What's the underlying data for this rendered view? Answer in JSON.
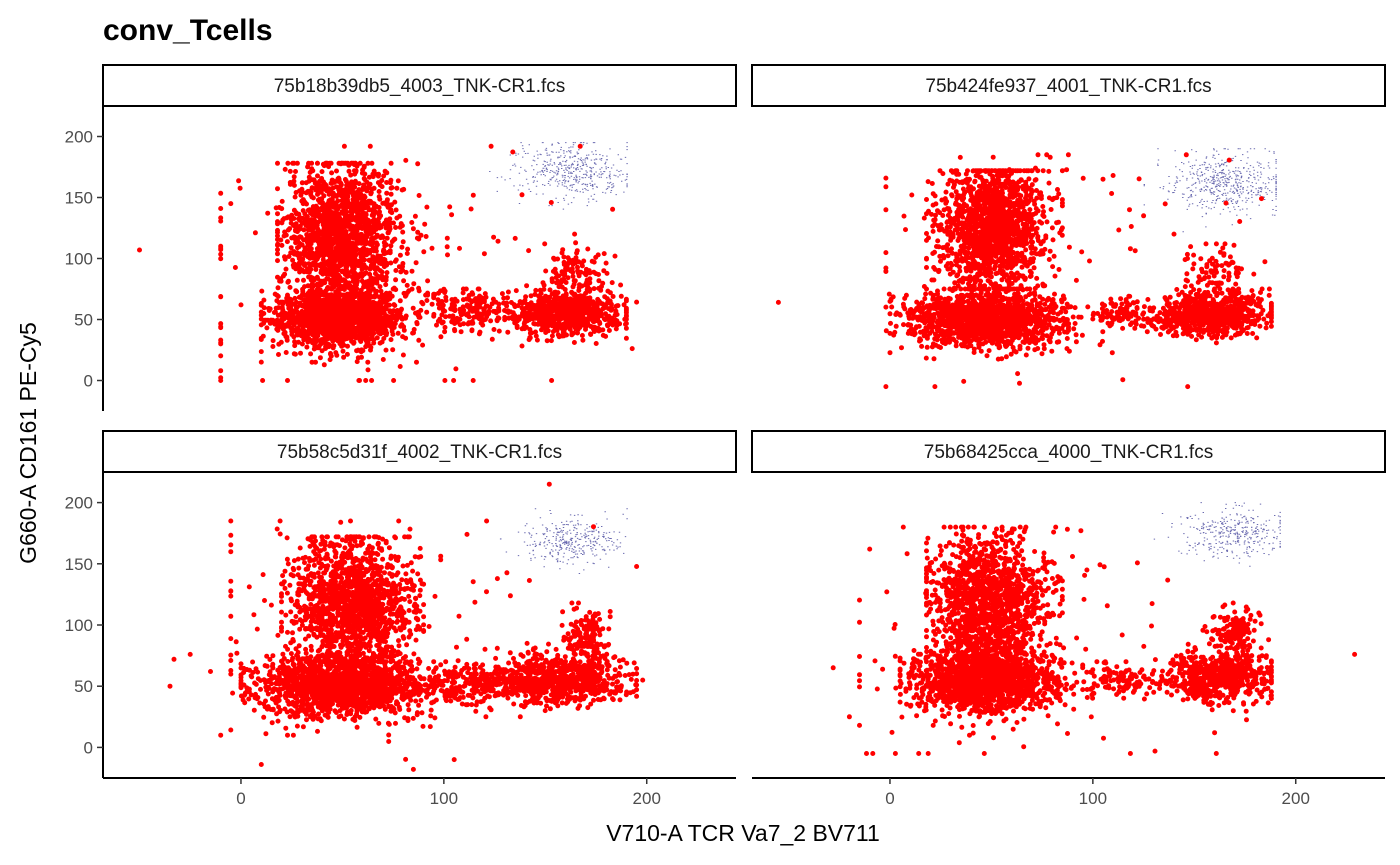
{
  "chart_data": {
    "type": "scatter",
    "title": "conv_Tcells",
    "xlabel": "V710-A TCR Va7_2 BV711",
    "ylabel": "G660-A CD161 PE-Cy5",
    "xlim": [
      -68,
      244
    ],
    "ylim": [
      -25,
      225
    ],
    "x_ticks": [
      0,
      100,
      200
    ],
    "y_ticks": [
      0,
      50,
      100,
      150,
      200
    ],
    "grid": false,
    "legend": "none",
    "colors": {
      "main_events": "#ff0000",
      "gated_events": "#6b6bb0"
    },
    "panels": [
      {
        "strip": "75b18b39db5_4003_TNK-CR1.fcs",
        "clusters": [
          {
            "kind": "main",
            "cx": 50,
            "cy": 120,
            "sx": 14,
            "sy": 28,
            "n": 1500,
            "xmin": 18,
            "xmax": 92,
            "ymin": 70,
            "ymax": 178
          },
          {
            "kind": "main",
            "cx": 48,
            "cy": 52,
            "sx": 16,
            "sy": 12,
            "n": 1500,
            "xmin": 10,
            "xmax": 105,
            "ymin": 15,
            "ymax": 90
          },
          {
            "kind": "main",
            "cx": 160,
            "cy": 55,
            "sx": 14,
            "sy": 9,
            "n": 700,
            "xmin": 120,
            "xmax": 190,
            "ymin": 30,
            "ymax": 80
          },
          {
            "kind": "main",
            "cx": 165,
            "cy": 90,
            "sx": 8,
            "sy": 12,
            "n": 120,
            "xmin": 140,
            "xmax": 185,
            "ymin": 65,
            "ymax": 120
          },
          {
            "kind": "main",
            "cx": 110,
            "cy": 58,
            "sx": 9,
            "sy": 8,
            "n": 150,
            "xmin": 95,
            "xmax": 130,
            "ymin": 40,
            "ymax": 75
          },
          {
            "kind": "main",
            "cx": 60,
            "cy": 90,
            "sx": 55,
            "sy": 60,
            "n": 140,
            "xmin": -10,
            "xmax": 195,
            "ymin": 0,
            "ymax": 192
          },
          {
            "kind": "gated",
            "cx": 163,
            "cy": 172,
            "sx": 14,
            "sy": 12,
            "n": 450,
            "xmin": 120,
            "xmax": 190,
            "ymin": 130,
            "ymax": 195
          }
        ],
        "singles": [
          [
            -50,
            107
          ],
          [
            -10,
            110
          ],
          [
            -10,
            30
          ],
          [
            -10,
            8
          ],
          [
            -5,
            145
          ],
          [
            0,
            62
          ]
        ]
      },
      {
        "strip": "75b424fe937_4001_TNK-CR1.fcs",
        "clusters": [
          {
            "kind": "main",
            "cx": 50,
            "cy": 125,
            "sx": 13,
            "sy": 25,
            "n": 1400,
            "xmin": 18,
            "xmax": 85,
            "ymin": 75,
            "ymax": 172
          },
          {
            "kind": "main",
            "cx": 47,
            "cy": 50,
            "sx": 18,
            "sy": 11,
            "n": 1500,
            "xmin": 0,
            "xmax": 110,
            "ymin": 15,
            "ymax": 85
          },
          {
            "kind": "main",
            "cx": 158,
            "cy": 53,
            "sx": 14,
            "sy": 8,
            "n": 650,
            "xmin": 125,
            "xmax": 188,
            "ymin": 30,
            "ymax": 75
          },
          {
            "kind": "main",
            "cx": 160,
            "cy": 85,
            "sx": 9,
            "sy": 12,
            "n": 100,
            "xmin": 140,
            "xmax": 180,
            "ymin": 65,
            "ymax": 112
          },
          {
            "kind": "main",
            "cx": 115,
            "cy": 55,
            "sx": 8,
            "sy": 7,
            "n": 100,
            "xmin": 100,
            "xmax": 130,
            "ymin": 40,
            "ymax": 70
          },
          {
            "kind": "main",
            "cx": 65,
            "cy": 90,
            "sx": 50,
            "sy": 55,
            "n": 110,
            "xmin": -2,
            "xmax": 190,
            "ymin": -5,
            "ymax": 185
          },
          {
            "kind": "gated",
            "cx": 165,
            "cy": 162,
            "sx": 14,
            "sy": 13,
            "n": 500,
            "xmin": 125,
            "xmax": 190,
            "ymin": 122,
            "ymax": 190
          }
        ],
        "singles": [
          [
            -55,
            64
          ],
          [
            140,
            120
          ],
          [
            125,
            135
          ],
          [
            110,
            168
          ],
          [
            105,
            165
          ]
        ]
      },
      {
        "strip": "75b58c5d31f_4002_TNK-CR1.fcs",
        "clusters": [
          {
            "kind": "main",
            "cx": 55,
            "cy": 118,
            "sx": 15,
            "sy": 27,
            "n": 1400,
            "xmin": 20,
            "xmax": 90,
            "ymin": 70,
            "ymax": 172
          },
          {
            "kind": "main",
            "cx": 50,
            "cy": 50,
            "sx": 20,
            "sy": 12,
            "n": 1600,
            "xmin": 0,
            "xmax": 115,
            "ymin": 10,
            "ymax": 90
          },
          {
            "kind": "main",
            "cx": 155,
            "cy": 55,
            "sx": 18,
            "sy": 10,
            "n": 800,
            "xmin": 115,
            "xmax": 195,
            "ymin": 25,
            "ymax": 85
          },
          {
            "kind": "main",
            "cx": 170,
            "cy": 90,
            "sx": 6,
            "sy": 12,
            "n": 150,
            "xmin": 150,
            "xmax": 182,
            "ymin": 65,
            "ymax": 118
          },
          {
            "kind": "main",
            "cx": 110,
            "cy": 52,
            "sx": 9,
            "sy": 8,
            "n": 140,
            "xmin": 95,
            "xmax": 130,
            "ymin": 35,
            "ymax": 70
          },
          {
            "kind": "main",
            "cx": 65,
            "cy": 85,
            "sx": 55,
            "sy": 55,
            "n": 140,
            "xmin": -5,
            "xmax": 195,
            "ymin": -15,
            "ymax": 185
          },
          {
            "kind": "gated",
            "cx": 163,
            "cy": 168,
            "sx": 12,
            "sy": 10,
            "n": 330,
            "xmin": 125,
            "xmax": 190,
            "ymin": 140,
            "ymax": 195
          }
        ],
        "singles": [
          [
            -35,
            50
          ],
          [
            -33,
            72
          ],
          [
            -25,
            76
          ],
          [
            -15,
            62
          ],
          [
            -10,
            10
          ],
          [
            -2,
            77
          ],
          [
            10,
            -14
          ],
          [
            85,
            -18
          ],
          [
            152,
            215
          ],
          [
            198,
            55
          ]
        ]
      },
      {
        "strip": "75b68425cca_4000_TNK-CR1.fcs",
        "clusters": [
          {
            "kind": "main",
            "cx": 48,
            "cy": 118,
            "sx": 14,
            "sy": 27,
            "n": 1400,
            "xmin": 18,
            "xmax": 85,
            "ymin": 70,
            "ymax": 180
          },
          {
            "kind": "main",
            "cx": 47,
            "cy": 55,
            "sx": 18,
            "sy": 13,
            "n": 1500,
            "xmin": 5,
            "xmax": 100,
            "ymin": 10,
            "ymax": 95
          },
          {
            "kind": "main",
            "cx": 162,
            "cy": 58,
            "sx": 13,
            "sy": 10,
            "n": 650,
            "xmin": 125,
            "xmax": 188,
            "ymin": 28,
            "ymax": 88
          },
          {
            "kind": "main",
            "cx": 170,
            "cy": 95,
            "sx": 6,
            "sy": 10,
            "n": 150,
            "xmin": 150,
            "xmax": 183,
            "ymin": 75,
            "ymax": 118
          },
          {
            "kind": "main",
            "cx": 112,
            "cy": 55,
            "sx": 9,
            "sy": 7,
            "n": 100,
            "xmin": 95,
            "xmax": 130,
            "ymin": 40,
            "ymax": 70
          },
          {
            "kind": "main",
            "cx": 60,
            "cy": 85,
            "sx": 50,
            "sy": 55,
            "n": 110,
            "xmin": -15,
            "xmax": 190,
            "ymin": -5,
            "ymax": 180
          },
          {
            "kind": "gated",
            "cx": 168,
            "cy": 175,
            "sx": 13,
            "sy": 10,
            "n": 350,
            "xmin": 130,
            "xmax": 192,
            "ymin": 140,
            "ymax": 200
          }
        ],
        "singles": [
          [
            -28,
            65
          ],
          [
            -10,
            162
          ],
          [
            -15,
            18
          ],
          [
            -20,
            25
          ],
          [
            229,
            76
          ],
          [
            160,
            12
          ],
          [
            120,
            45
          ]
        ]
      }
    ]
  }
}
